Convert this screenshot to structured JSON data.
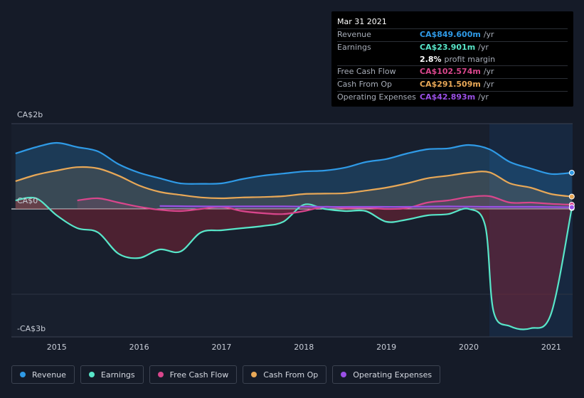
{
  "tooltip": {
    "date": "Mar 31 2021",
    "rows": [
      {
        "label": "Revenue",
        "value": "CA$849.600m",
        "unit": "/yr",
        "color": "#2f9ae6"
      },
      {
        "label": "Earnings",
        "value": "CA$23.901m",
        "unit": "/yr",
        "color": "#58e6c9"
      },
      {
        "label": "",
        "value": "2.8%",
        "unit": "profit margin",
        "color": "#ffffff"
      },
      {
        "label": "Free Cash Flow",
        "value": "CA$102.574m",
        "unit": "/yr",
        "color": "#d9468c"
      },
      {
        "label": "Cash From Op",
        "value": "CA$291.509m",
        "unit": "/yr",
        "color": "#e8a857"
      },
      {
        "label": "Operating Expenses",
        "value": "CA$42.893m",
        "unit": "/yr",
        "color": "#9a50e6"
      }
    ]
  },
  "legend": [
    {
      "label": "Revenue",
      "color": "#2f9ae6"
    },
    {
      "label": "Earnings",
      "color": "#58e6c9"
    },
    {
      "label": "Free Cash Flow",
      "color": "#d9468c"
    },
    {
      "label": "Cash From Op",
      "color": "#e8a857"
    },
    {
      "label": "Operating Expenses",
      "color": "#9a50e6"
    }
  ],
  "chart_data": {
    "type": "line",
    "y_tick_labels": [
      "CA$2b",
      "CA$0",
      "-CA$3b"
    ],
    "ylim": [
      -3.0,
      2.0
    ],
    "x_tick_labels": [
      "2015",
      "2016",
      "2017",
      "2018",
      "2019",
      "2020",
      "2021"
    ],
    "xlim": [
      2014.45,
      2021.26
    ],
    "forecast_shade_from": 2020.25,
    "series": [
      {
        "name": "Revenue",
        "color": "#2f9ae6",
        "x": [
          2014.5,
          2014.75,
          2015.0,
          2015.25,
          2015.5,
          2015.75,
          2016.0,
          2016.25,
          2016.5,
          2016.75,
          2017.0,
          2017.25,
          2017.5,
          2017.75,
          2018.0,
          2018.25,
          2018.5,
          2018.75,
          2019.0,
          2019.25,
          2019.5,
          2019.75,
          2020.0,
          2020.25,
          2020.5,
          2020.75,
          2021.0,
          2021.25
        ],
        "y": [
          1.3,
          1.45,
          1.55,
          1.45,
          1.35,
          1.05,
          0.85,
          0.72,
          0.6,
          0.59,
          0.6,
          0.7,
          0.78,
          0.83,
          0.88,
          0.9,
          0.97,
          1.1,
          1.17,
          1.3,
          1.4,
          1.42,
          1.5,
          1.4,
          1.1,
          0.95,
          0.82,
          0.85
        ]
      },
      {
        "name": "Earnings",
        "color": "#58e6c9",
        "x": [
          2014.5,
          2014.75,
          2015.0,
          2015.25,
          2015.5,
          2015.75,
          2016.0,
          2016.25,
          2016.5,
          2016.75,
          2017.0,
          2017.25,
          2017.5,
          2017.75,
          2018.0,
          2018.25,
          2018.5,
          2018.75,
          2019.0,
          2019.25,
          2019.5,
          2019.75,
          2020.0,
          2020.2,
          2020.3,
          2020.5,
          2020.75,
          2021.0,
          2021.25
        ],
        "y": [
          0.2,
          0.25,
          -0.15,
          -0.45,
          -0.55,
          -1.05,
          -1.15,
          -0.95,
          -1.0,
          -0.55,
          -0.5,
          -0.45,
          -0.4,
          -0.3,
          0.1,
          0.0,
          -0.05,
          -0.05,
          -0.3,
          -0.25,
          -0.15,
          -0.12,
          0.0,
          -0.4,
          -2.4,
          -2.75,
          -2.8,
          -2.45,
          0.02
        ]
      },
      {
        "name": "Free Cash Flow",
        "color": "#d9468c",
        "x": [
          2015.25,
          2015.5,
          2015.75,
          2016.0,
          2016.25,
          2016.5,
          2016.75,
          2017.0,
          2017.25,
          2017.5,
          2017.75,
          2018.0,
          2018.25,
          2018.5,
          2018.75,
          2019.0,
          2019.25,
          2019.5,
          2019.75,
          2020.0,
          2020.25,
          2020.5,
          2020.75,
          2021.0,
          2021.25
        ],
        "y": [
          0.2,
          0.25,
          0.15,
          0.05,
          -0.02,
          -0.05,
          0.0,
          0.05,
          -0.05,
          -0.1,
          -0.12,
          -0.05,
          0.05,
          0.02,
          0.03,
          0.0,
          0.02,
          0.15,
          0.2,
          0.28,
          0.3,
          0.15,
          0.15,
          0.12,
          0.1
        ]
      },
      {
        "name": "Cash From Op",
        "color": "#e8a857",
        "x": [
          2014.5,
          2014.75,
          2015.0,
          2015.25,
          2015.5,
          2015.75,
          2016.0,
          2016.25,
          2016.5,
          2016.75,
          2017.0,
          2017.25,
          2017.5,
          2017.75,
          2018.0,
          2018.25,
          2018.5,
          2018.75,
          2019.0,
          2019.25,
          2019.5,
          2019.75,
          2020.0,
          2020.25,
          2020.5,
          2020.75,
          2021.0,
          2021.25
        ],
        "y": [
          0.65,
          0.8,
          0.9,
          0.98,
          0.95,
          0.78,
          0.55,
          0.4,
          0.33,
          0.27,
          0.25,
          0.27,
          0.28,
          0.3,
          0.35,
          0.36,
          0.37,
          0.43,
          0.5,
          0.6,
          0.72,
          0.78,
          0.85,
          0.86,
          0.6,
          0.5,
          0.35,
          0.29
        ]
      },
      {
        "name": "Operating Expenses",
        "color": "#9a50e6",
        "x": [
          2016.25,
          2016.75,
          2017.25,
          2017.75,
          2018.25,
          2018.75,
          2019.25,
          2019.75,
          2020.25,
          2020.75,
          2021.25
        ],
        "y": [
          0.07,
          0.06,
          0.06,
          0.06,
          0.05,
          0.05,
          0.05,
          0.06,
          0.05,
          0.05,
          0.04
        ]
      }
    ]
  }
}
